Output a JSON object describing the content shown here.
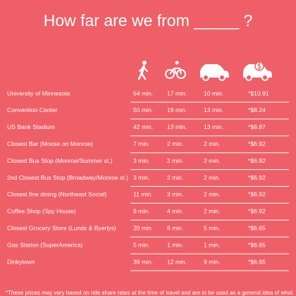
{
  "title": "How far are we from _____ ?",
  "table": {
    "rows": [
      [
        "University of Minnesota",
        "54 min.",
        "17 min.",
        "10 min.",
        "*$10.91"
      ],
      [
        "Convention Center",
        "50 min.",
        "19 min.",
        "13 min.",
        "*$8.24"
      ],
      [
        "US Bank Stadium",
        "42 min.",
        "13 min.",
        "13 min.",
        "*$8.87"
      ],
      [
        "Closest Bar (Moose on Monroe)",
        "7 min.",
        "2 min.",
        "2 min.",
        "*$6.92"
      ],
      [
        "Closest Bus Stop (Monroe/Summer st.)",
        "3 min.",
        "2 min.",
        "2 min.",
        "*$6.92"
      ],
      [
        "2nd Closest Bus Stop (Broadway/Monroe st.)",
        "3 min.",
        "2 min.",
        "2 min.",
        "*$6.92"
      ],
      [
        "Closest fine dining (Northeast Social)",
        "11 min.",
        "3 min.",
        "2 min.",
        "*$6.92"
      ],
      [
        "Coffee Shop (Spy House)",
        "9 min.",
        "4 min.",
        "2 min.",
        "*$6.92"
      ],
      [
        "Closest Grocery Store (Lunds & Byerlys)",
        "20 min.",
        "6 min.",
        "5 min.",
        "*$6.65"
      ],
      [
        "Gas Station (SuperAmerica)",
        "5 min.",
        "1 min.",
        "1 min.",
        "*$6.65"
      ],
      [
        "Dinkytown",
        "39 min.",
        "12 min.",
        "9 min.",
        "*$6.65"
      ]
    ]
  },
  "footnote": "*These prices may vary based on ride share rates at the time of travel and are to be used as a general idea of what"
}
